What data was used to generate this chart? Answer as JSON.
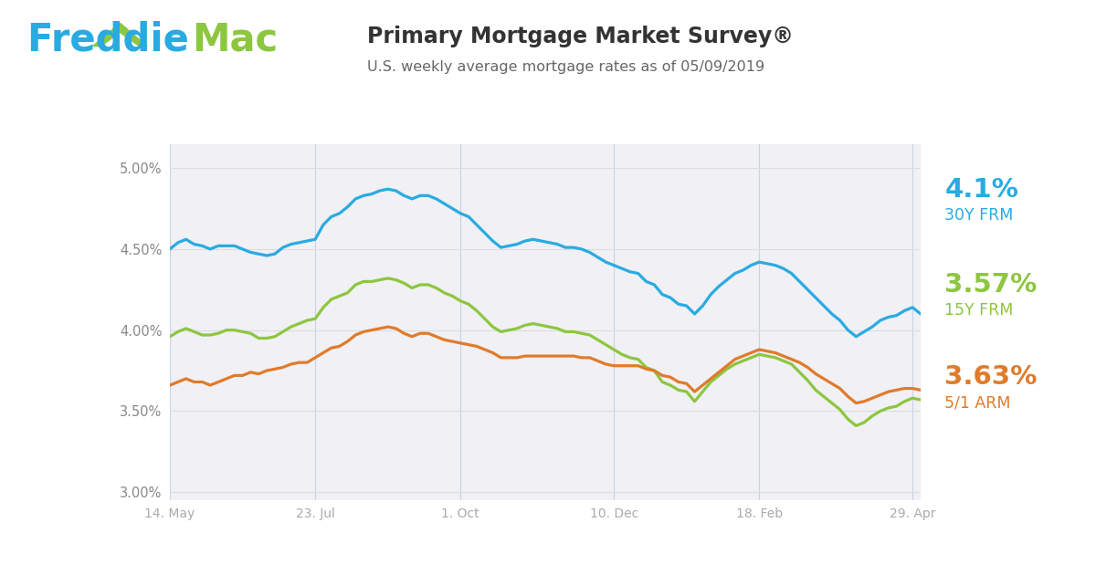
{
  "title": "Primary Mortgage Market Survey®",
  "subtitle": "U.S. weekly average mortgage rates as of 05/09/2019",
  "title_color": "#333333",
  "subtitle_color": "#666666",
  "background_color": "#ffffff",
  "plot_bg_color": "#f0f0f5",
  "line_30y_color": "#29abe2",
  "line_15y_color": "#8dc63f",
  "line_arm_color": "#e07b2a",
  "label_30y": "4.1%",
  "label_30y_sub": "30Y FRM",
  "label_15y": "3.57%",
  "label_15y_sub": "15Y FRM",
  "label_arm": "3.63%",
  "label_arm_sub": "5/1 ARM",
  "xtick_color": "#aaaaaa",
  "ytick_color": "#888888",
  "grid_color": "#dddddd",
  "vline_color": "#c8d4e8",
  "ylim": [
    2.95,
    5.15
  ],
  "yticks": [
    3.0,
    3.5,
    4.0,
    4.5,
    5.0
  ],
  "x_tick_labels": [
    "14. May",
    "23. Jul",
    "1. Oct",
    "10. Dec",
    "18. Feb",
    "29. Apr"
  ],
  "x_tick_positions": [
    0,
    18,
    36,
    55,
    73,
    92
  ],
  "freddie_blue": "#29abe2",
  "freddie_green": "#8dc63f",
  "data_30y": [
    4.5,
    4.54,
    4.56,
    4.53,
    4.52,
    4.5,
    4.52,
    4.52,
    4.52,
    4.5,
    4.48,
    4.47,
    4.46,
    4.47,
    4.51,
    4.53,
    4.54,
    4.55,
    4.56,
    4.65,
    4.7,
    4.72,
    4.76,
    4.81,
    4.83,
    4.84,
    4.86,
    4.87,
    4.86,
    4.83,
    4.81,
    4.83,
    4.83,
    4.81,
    4.78,
    4.75,
    4.72,
    4.7,
    4.65,
    4.6,
    4.55,
    4.51,
    4.52,
    4.53,
    4.55,
    4.56,
    4.55,
    4.54,
    4.53,
    4.51,
    4.51,
    4.5,
    4.48,
    4.45,
    4.42,
    4.4,
    4.38,
    4.36,
    4.35,
    4.3,
    4.28,
    4.22,
    4.2,
    4.16,
    4.15,
    4.1,
    4.15,
    4.22,
    4.27,
    4.31,
    4.35,
    4.37,
    4.4,
    4.42,
    4.41,
    4.4,
    4.38,
    4.35,
    4.3,
    4.25,
    4.2,
    4.15,
    4.1,
    4.06,
    4.0,
    3.96,
    3.99,
    4.02,
    4.06,
    4.08,
    4.09,
    4.12,
    4.14,
    4.1
  ],
  "data_15y": [
    3.96,
    3.99,
    4.01,
    3.99,
    3.97,
    3.97,
    3.98,
    4.0,
    4.0,
    3.99,
    3.98,
    3.95,
    3.95,
    3.96,
    3.99,
    4.02,
    4.04,
    4.06,
    4.07,
    4.14,
    4.19,
    4.21,
    4.23,
    4.28,
    4.3,
    4.3,
    4.31,
    4.32,
    4.31,
    4.29,
    4.26,
    4.28,
    4.28,
    4.26,
    4.23,
    4.21,
    4.18,
    4.16,
    4.12,
    4.07,
    4.02,
    3.99,
    4.0,
    4.01,
    4.03,
    4.04,
    4.03,
    4.02,
    4.01,
    3.99,
    3.99,
    3.98,
    3.97,
    3.94,
    3.91,
    3.88,
    3.85,
    3.83,
    3.82,
    3.77,
    3.75,
    3.68,
    3.66,
    3.63,
    3.62,
    3.56,
    3.62,
    3.68,
    3.72,
    3.76,
    3.79,
    3.81,
    3.83,
    3.85,
    3.84,
    3.83,
    3.81,
    3.79,
    3.74,
    3.69,
    3.63,
    3.59,
    3.55,
    3.51,
    3.45,
    3.41,
    3.43,
    3.47,
    3.5,
    3.52,
    3.53,
    3.56,
    3.58,
    3.57
  ],
  "data_arm": [
    3.66,
    3.68,
    3.7,
    3.68,
    3.68,
    3.66,
    3.68,
    3.7,
    3.72,
    3.72,
    3.74,
    3.73,
    3.75,
    3.76,
    3.77,
    3.79,
    3.8,
    3.8,
    3.83,
    3.86,
    3.89,
    3.9,
    3.93,
    3.97,
    3.99,
    4.0,
    4.01,
    4.02,
    4.01,
    3.98,
    3.96,
    3.98,
    3.98,
    3.96,
    3.94,
    3.93,
    3.92,
    3.91,
    3.9,
    3.88,
    3.86,
    3.83,
    3.83,
    3.83,
    3.84,
    3.84,
    3.84,
    3.84,
    3.84,
    3.84,
    3.84,
    3.83,
    3.83,
    3.81,
    3.79,
    3.78,
    3.78,
    3.78,
    3.78,
    3.76,
    3.75,
    3.72,
    3.71,
    3.68,
    3.67,
    3.62,
    3.66,
    3.7,
    3.74,
    3.78,
    3.82,
    3.84,
    3.86,
    3.88,
    3.87,
    3.86,
    3.84,
    3.82,
    3.8,
    3.77,
    3.73,
    3.7,
    3.67,
    3.64,
    3.59,
    3.55,
    3.56,
    3.58,
    3.6,
    3.62,
    3.63,
    3.64,
    3.64,
    3.63
  ]
}
